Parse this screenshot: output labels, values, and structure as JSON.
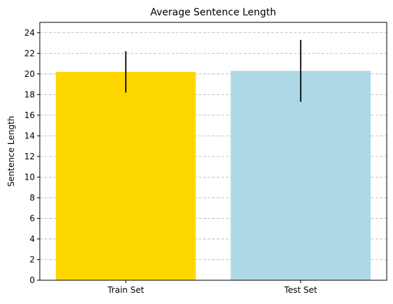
{
  "chart_data": {
    "type": "bar",
    "title": "Average Sentence Length",
    "xlabel": "",
    "ylabel": "Sentence Length",
    "categories": [
      "Train Set",
      "Test Set"
    ],
    "values": [
      20.2,
      20.3
    ],
    "errors": [
      2.0,
      3.0
    ],
    "colors": [
      "#FFD700",
      "#ADD8E6"
    ],
    "ylim": [
      0,
      25
    ],
    "yticks": [
      0,
      2,
      4,
      6,
      8,
      10,
      12,
      14,
      16,
      18,
      20,
      22,
      24
    ],
    "grid": "y-dashed",
    "legend": "none"
  }
}
